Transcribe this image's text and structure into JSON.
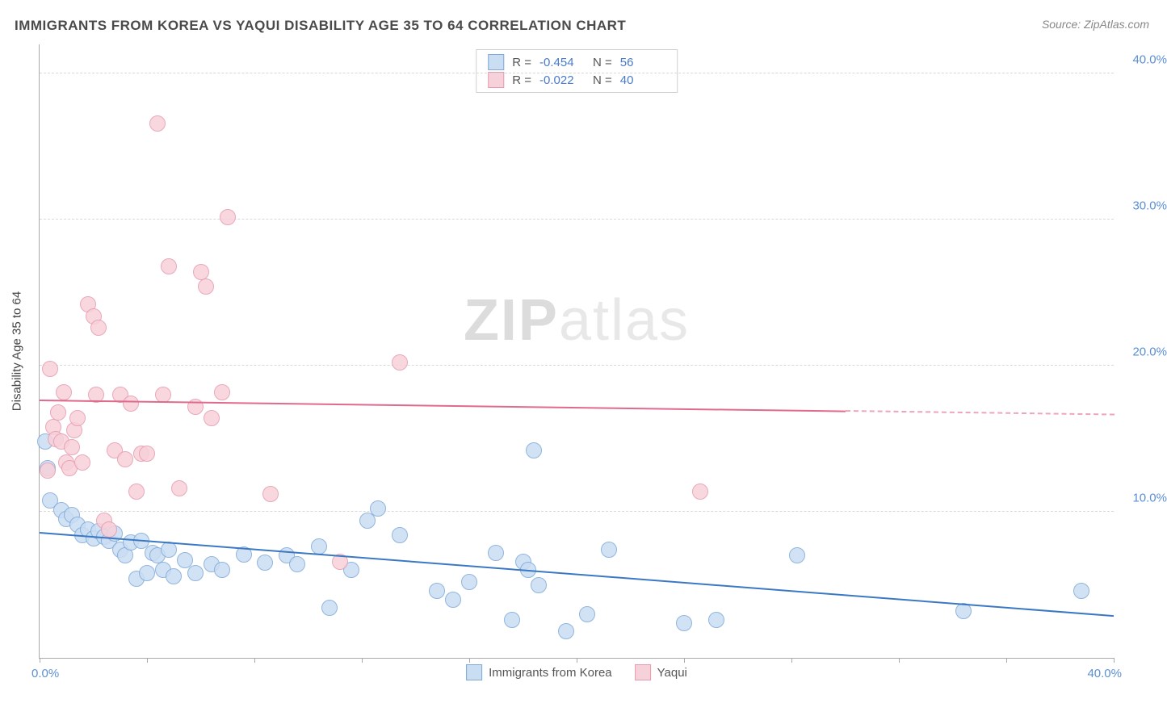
{
  "title": "IMMIGRANTS FROM KOREA VS YAQUI DISABILITY AGE 35 TO 64 CORRELATION CHART",
  "source": "Source: ZipAtlas.com",
  "ylabel": "Disability Age 35 to 64",
  "watermark_zip": "ZIP",
  "watermark_atlas": "atlas",
  "chart": {
    "type": "scatter",
    "background_color": "#ffffff",
    "grid_color": "#d8d8d8",
    "axis_color": "#aaaaaa",
    "xlim": [
      0,
      40
    ],
    "ylim": [
      0,
      42
    ],
    "yticks": [
      10,
      20,
      30,
      40
    ],
    "ytick_labels": [
      "10.0%",
      "20.0%",
      "30.0%",
      "40.0%"
    ],
    "xtick_positions": [
      0,
      4,
      8,
      12,
      16,
      20,
      24,
      28,
      32,
      36,
      40
    ],
    "x_end_labels": [
      "0.0%",
      "40.0%"
    ],
    "ytick_label_color": "#5b8fd6",
    "label_fontsize": 15,
    "title_fontsize": 17,
    "title_color": "#4a4a4a"
  },
  "series": [
    {
      "name": "Immigrants from Korea",
      "fill": "#c9ddf3",
      "stroke": "#7fa9d8",
      "line_color": "#3b78c4",
      "marker_radius": 9,
      "marker_opacity": 0.85,
      "R": "-0.454",
      "N": "56",
      "trend": {
        "x1": 0,
        "y1": 8.5,
        "x2": 40,
        "y2": 2.8,
        "dash_from_x": null
      },
      "points": [
        [
          0.2,
          14.8
        ],
        [
          0.3,
          13.0
        ],
        [
          0.4,
          10.8
        ],
        [
          0.8,
          10.1
        ],
        [
          1.0,
          9.5
        ],
        [
          1.2,
          9.8
        ],
        [
          1.4,
          9.1
        ],
        [
          1.6,
          8.4
        ],
        [
          1.8,
          8.8
        ],
        [
          2.0,
          8.2
        ],
        [
          2.2,
          8.7
        ],
        [
          2.4,
          8.3
        ],
        [
          2.6,
          8.0
        ],
        [
          2.8,
          8.5
        ],
        [
          3.0,
          7.4
        ],
        [
          3.2,
          7.0
        ],
        [
          3.4,
          7.9
        ],
        [
          3.6,
          5.4
        ],
        [
          3.8,
          8.0
        ],
        [
          4.0,
          5.8
        ],
        [
          4.2,
          7.2
        ],
        [
          4.4,
          7.0
        ],
        [
          4.6,
          6.0
        ],
        [
          4.8,
          7.4
        ],
        [
          5.0,
          5.6
        ],
        [
          5.4,
          6.7
        ],
        [
          5.8,
          5.8
        ],
        [
          6.4,
          6.4
        ],
        [
          6.8,
          6.0
        ],
        [
          7.6,
          7.1
        ],
        [
          8.4,
          6.5
        ],
        [
          9.2,
          7.0
        ],
        [
          9.6,
          6.4
        ],
        [
          10.4,
          7.6
        ],
        [
          10.8,
          3.4
        ],
        [
          11.6,
          6.0
        ],
        [
          12.2,
          9.4
        ],
        [
          12.6,
          10.2
        ],
        [
          13.4,
          8.4
        ],
        [
          14.8,
          4.6
        ],
        [
          15.4,
          4.0
        ],
        [
          16.0,
          5.2
        ],
        [
          17.0,
          7.2
        ],
        [
          17.6,
          2.6
        ],
        [
          18.0,
          6.6
        ],
        [
          18.2,
          6.0
        ],
        [
          18.4,
          14.2
        ],
        [
          18.6,
          5.0
        ],
        [
          19.6,
          1.8
        ],
        [
          20.4,
          3.0
        ],
        [
          21.2,
          7.4
        ],
        [
          24.0,
          2.4
        ],
        [
          25.2,
          2.6
        ],
        [
          28.2,
          7.0
        ],
        [
          34.4,
          3.2
        ],
        [
          38.8,
          4.6
        ]
      ]
    },
    {
      "name": "Yaqui",
      "fill": "#f7d1da",
      "stroke": "#e79ab0",
      "line_color": "#e06a8c",
      "marker_radius": 9,
      "marker_opacity": 0.85,
      "R": "-0.022",
      "N": "40",
      "trend": {
        "x1": 0,
        "y1": 17.6,
        "x2": 40,
        "y2": 16.6,
        "dash_from_x": 30
      },
      "points": [
        [
          0.4,
          19.8
        ],
        [
          0.5,
          15.8
        ],
        [
          0.6,
          15.0
        ],
        [
          0.7,
          16.8
        ],
        [
          0.8,
          14.8
        ],
        [
          0.9,
          18.2
        ],
        [
          1.0,
          13.4
        ],
        [
          1.1,
          13.0
        ],
        [
          1.2,
          14.4
        ],
        [
          1.3,
          15.6
        ],
        [
          1.4,
          16.4
        ],
        [
          1.6,
          13.4
        ],
        [
          1.8,
          24.2
        ],
        [
          2.0,
          23.4
        ],
        [
          2.1,
          18.0
        ],
        [
          2.2,
          22.6
        ],
        [
          2.4,
          9.4
        ],
        [
          2.6,
          8.8
        ],
        [
          2.8,
          14.2
        ],
        [
          3.0,
          18.0
        ],
        [
          3.2,
          13.6
        ],
        [
          3.4,
          17.4
        ],
        [
          3.6,
          11.4
        ],
        [
          3.8,
          14.0
        ],
        [
          4.0,
          14.0
        ],
        [
          4.4,
          36.6
        ],
        [
          4.6,
          18.0
        ],
        [
          4.8,
          26.8
        ],
        [
          5.2,
          11.6
        ],
        [
          5.8,
          17.2
        ],
        [
          6.0,
          26.4
        ],
        [
          6.2,
          25.4
        ],
        [
          6.4,
          16.4
        ],
        [
          6.8,
          18.2
        ],
        [
          7.0,
          30.2
        ],
        [
          8.6,
          11.2
        ],
        [
          11.2,
          6.6
        ],
        [
          13.4,
          20.2
        ],
        [
          24.6,
          11.4
        ],
        [
          0.3,
          12.8
        ]
      ]
    }
  ],
  "stats_labels": {
    "R": "R =",
    "N": "N ="
  },
  "legend_labels": [
    "Immigrants from Korea",
    "Yaqui"
  ]
}
